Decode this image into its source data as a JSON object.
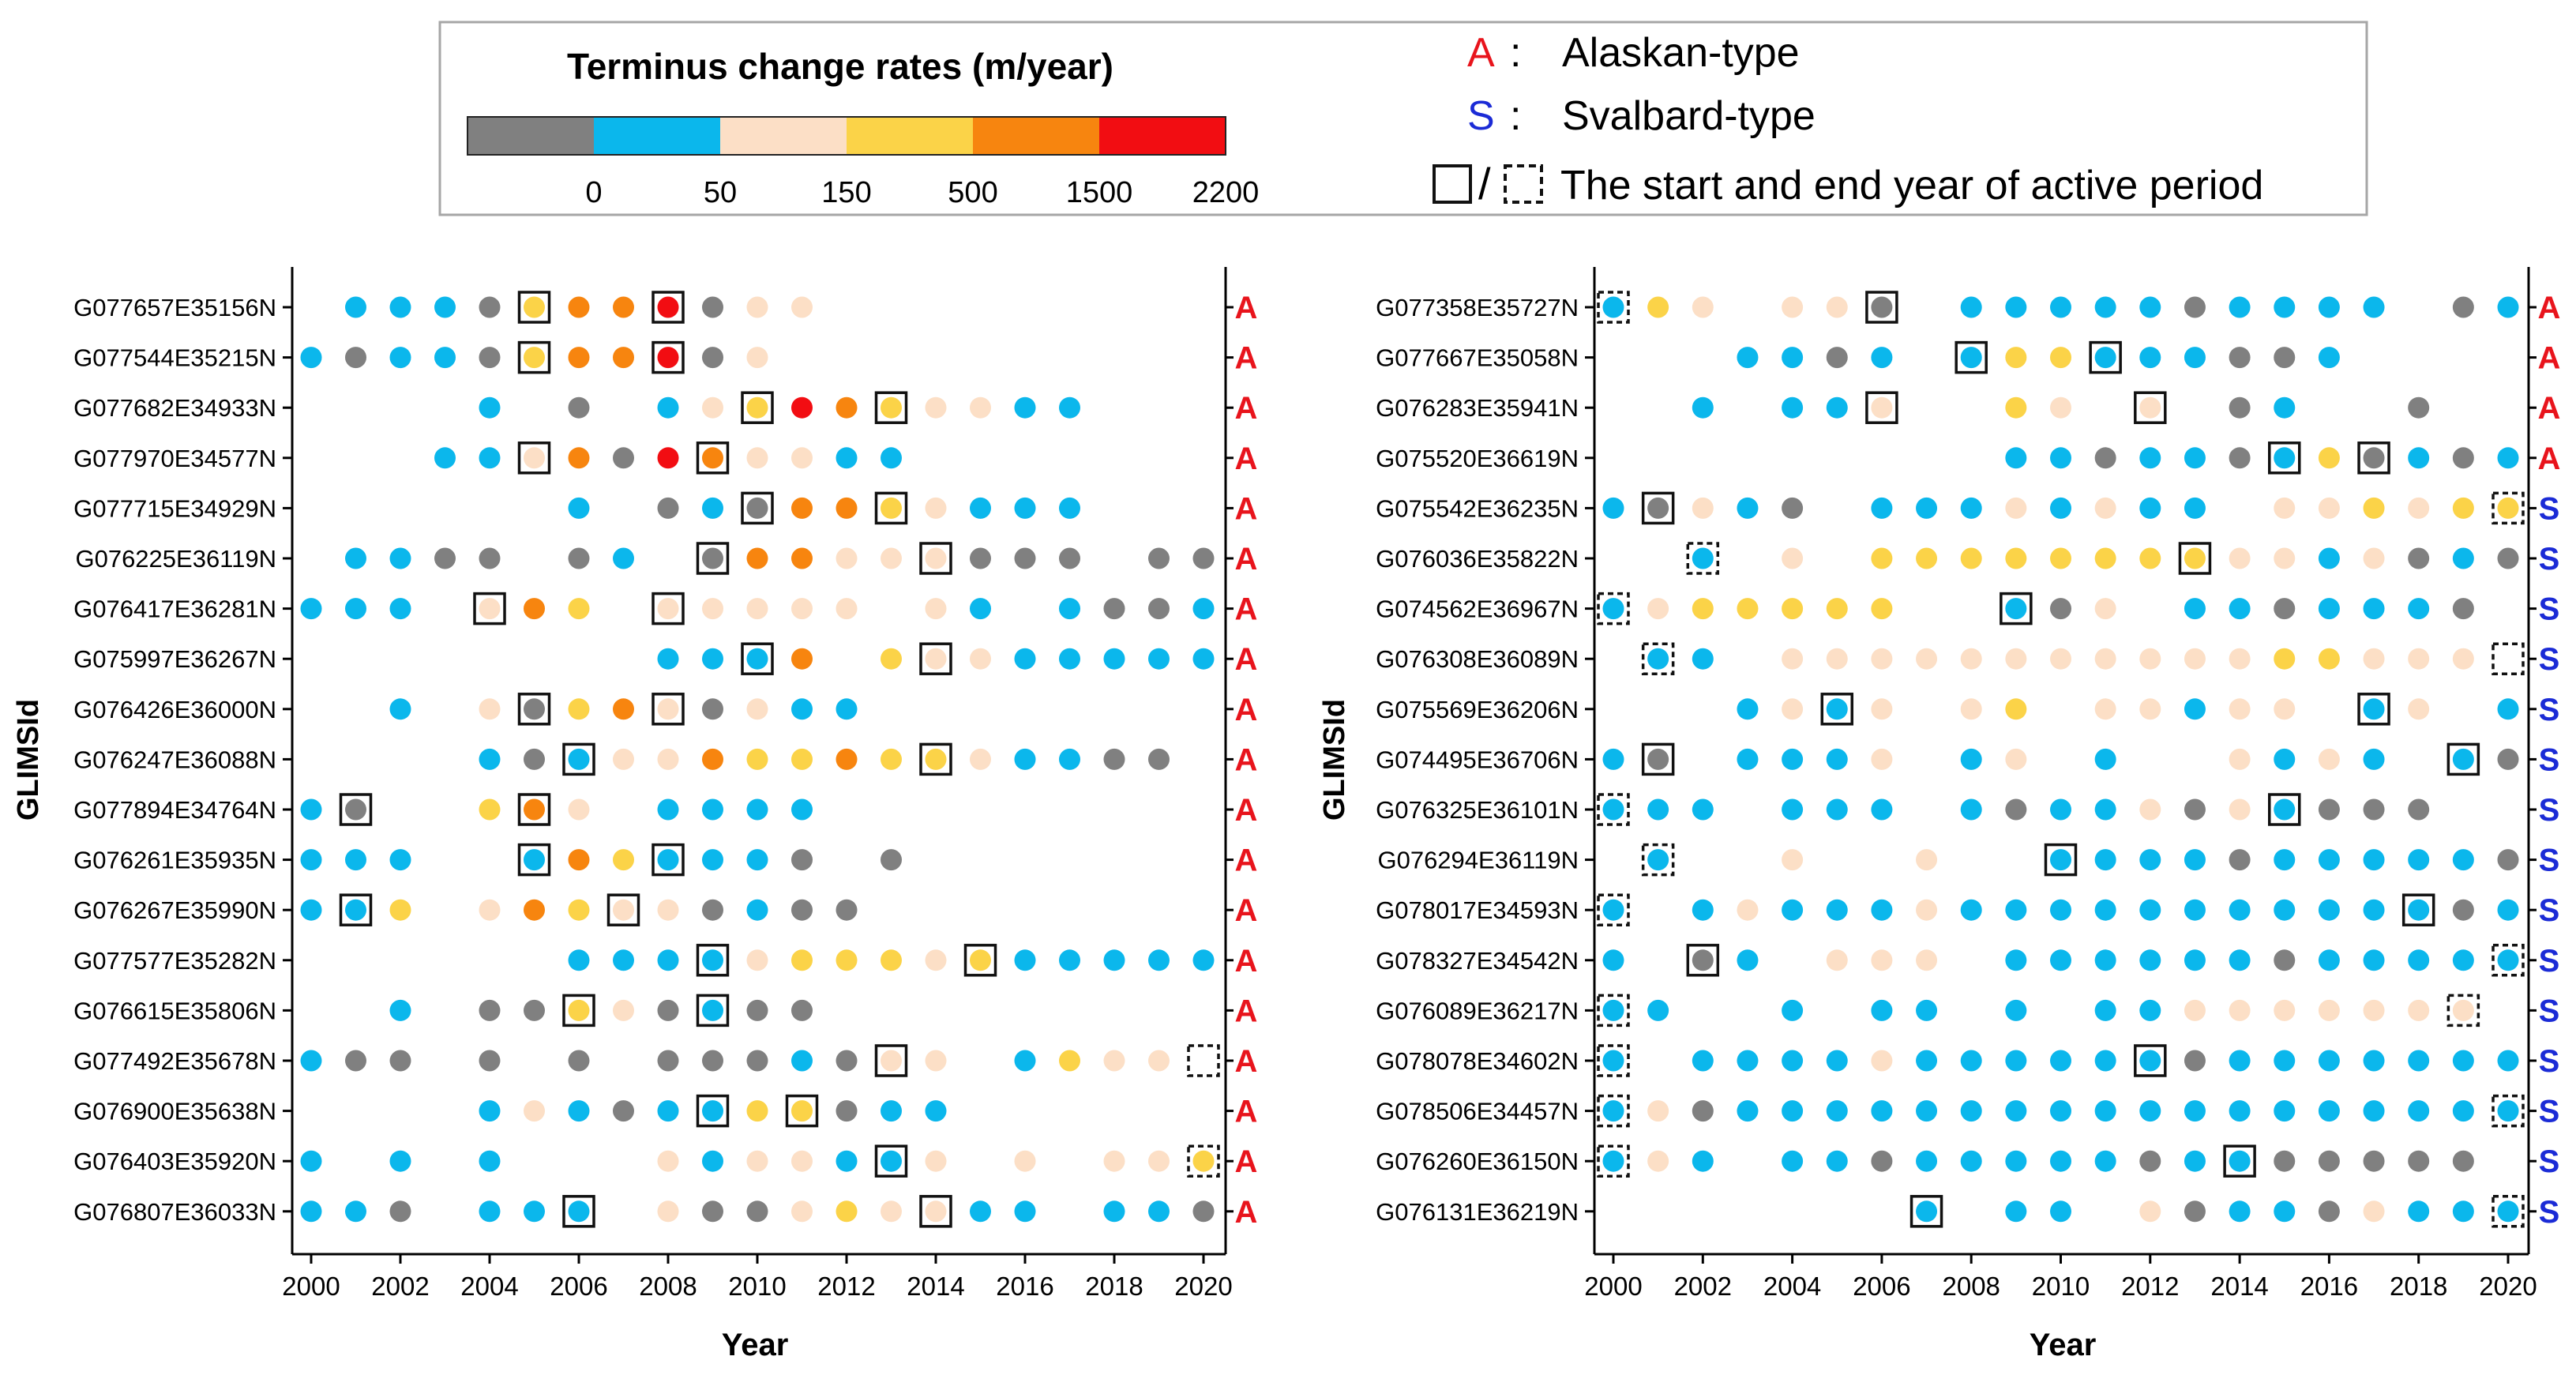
{
  "colors": {
    "gray": "#808080",
    "blue": "#0bb7ec",
    "peach": "#fcdfc6",
    "yellow": "#fbd348",
    "orange": "#f7850f",
    "red": "#f20d12",
    "type_A": "#e8141c",
    "type_S": "#1b2bd6"
  },
  "legend": {
    "colorbar_title": "Terminus change rates (m/year)",
    "colorbar_ticks": [
      "0",
      "50",
      "150",
      "500",
      "1500",
      "2200"
    ],
    "colorbar_classes": [
      "gray",
      "blue",
      "peach",
      "yellow",
      "orange",
      "red"
    ],
    "type_a_letter": "A",
    "type_a_sep": ":",
    "type_a_text": "Alaskan-type",
    "type_s_letter": "S",
    "type_s_sep": ":",
    "type_s_text": "Svalbard-type",
    "box_sep": "/",
    "box_text": "The start and end year of active period"
  },
  "chart_data": [
    {
      "type": "scatter",
      "title": "",
      "xlabel": "Year",
      "ylabel": "GLIMSId",
      "xlim": [
        2000,
        2020
      ],
      "xticks": [
        "2000",
        "2002",
        "2004",
        "2006",
        "2008",
        "2010",
        "2012",
        "2014",
        "2016",
        "2018",
        "2020"
      ],
      "color_key": "g=gray(<0), b=blue(0-50), p=peach(50-150), y=yellow(150-500), o=orange(500-1500), r=red(1500-2200), .=no data; one char per year 2000..2020",
      "rows": [
        {
          "id": "G077657E35156N",
          "type": "A",
          "codes": ".bbbgyoorgpp.........",
          "start": 2005,
          "end": 2008,
          "end_dashed": false
        },
        {
          "id": "G077544E35215N",
          "type": "A",
          "codes": "bgbbgyoorgp..........",
          "start": 2005,
          "end": 2008,
          "end_dashed": false
        },
        {
          "id": "G077682E34933N",
          "type": "A",
          "codes": "....b.g.bpyroyppbb...",
          "start": 2010,
          "end": 2013,
          "end_dashed": false
        },
        {
          "id": "G077970E34577N",
          "type": "A",
          "codes": "...bbpogroppbb.......",
          "start": 2005,
          "end": 2009,
          "end_dashed": false
        },
        {
          "id": "G077715E34929N",
          "type": "A",
          "codes": "......b.gbgooypbbb...",
          "start": 2010,
          "end": 2013,
          "end_dashed": false
        },
        {
          "id": "G076225E36119N",
          "type": "A",
          "codes": ".bbgg.gb.goopppggg.gg",
          "start": 2009,
          "end": 2014,
          "end_dashed": false
        },
        {
          "id": "G076417E36281N",
          "type": "A",
          "codes": "bbb.poy.ppppp.pb.bggb",
          "start": 2004,
          "end": 2008,
          "end_dashed": false
        },
        {
          "id": "G075997E36267N",
          "type": "A",
          "codes": "........bbbo.yppbbbbb",
          "start": 2010,
          "end": 2014,
          "end_dashed": false
        },
        {
          "id": "G076426E36000N",
          "type": "A",
          "codes": "..b.pgyopgpbb........",
          "start": 2005,
          "end": 2008,
          "end_dashed": false
        },
        {
          "id": "G076247E36088N",
          "type": "A",
          "codes": "....bgbppoyyoyypbbgg.",
          "start": 2006,
          "end": 2014,
          "end_dashed": false
        },
        {
          "id": "G077894E34764N",
          "type": "A",
          "codes": "bg..yop.bbbb.........",
          "start": 2001,
          "end": 2005,
          "end_dashed": false
        },
        {
          "id": "G076261E35935N",
          "type": "A",
          "codes": "bbb..boybbbg.g.......",
          "start": 2005,
          "end": 2008,
          "end_dashed": false
        },
        {
          "id": "G076267E35990N",
          "type": "A",
          "codes": "bby.poyppgbgg........",
          "start": 2001,
          "end": 2007,
          "end_dashed": false
        },
        {
          "id": "G077577E35282N",
          "type": "A",
          "codes": "......bbbbpyyypybbbbb",
          "start": 2009,
          "end": 2015,
          "end_dashed": false
        },
        {
          "id": "G076615E35806N",
          "type": "A",
          "codes": "..b.ggypgbgg.........",
          "start": 2006,
          "end": 2009,
          "end_dashed": false
        },
        {
          "id": "G077492E35678N",
          "type": "A",
          "codes": "bgg.g.g.gggbgpp.bypp.",
          "start": 2013,
          "end": 2020,
          "end_dashed": true
        },
        {
          "id": "G076900E35638N",
          "type": "A",
          "codes": "....bpbgbbyygbb......",
          "start": 2009,
          "end": 2011,
          "end_dashed": false
        },
        {
          "id": "G076403E35920N",
          "type": "A",
          "codes": "b.b.b...pbppbbp.p.ppy",
          "start": 2013,
          "end": 2020,
          "end_dashed": true
        },
        {
          "id": "G076807E36033N",
          "type": "A",
          "codes": "bbg.bbb.pggpyppbb.bbg",
          "start": 2006,
          "end": 2014,
          "end_dashed": false
        }
      ]
    },
    {
      "type": "scatter",
      "title": "",
      "xlabel": "Year",
      "ylabel": "GLIMSId",
      "xlim": [
        2000,
        2020
      ],
      "xticks": [
        "2000",
        "2002",
        "2004",
        "2006",
        "2008",
        "2010",
        "2012",
        "2014",
        "2016",
        "2018",
        "2020"
      ],
      "color_key": "g=gray(<0), b=blue(0-50), p=peach(50-150), y=yellow(150-500), o=orange(500-1500), r=red(1500-2200), .=no data; one char per year 2000..2020",
      "rows": [
        {
          "id": "G077358E35727N",
          "type": "A",
          "codes": "byp.ppg.bbbbbgbbbb.gb",
          "start": 2000,
          "start_dashed": true,
          "end": 2006,
          "end_dashed": false
        },
        {
          "id": "G077667E35058N",
          "type": "A",
          "codes": "...bbgb.byybbbggb....",
          "start": 2008,
          "end": 2011,
          "end_dashed": false
        },
        {
          "id": "G076283E35941N",
          "type": "A",
          "codes": "..b.bbp..yp.p.gb..g..",
          "start": 2006,
          "end": 2012,
          "end_dashed": false
        },
        {
          "id": "G075520E36619N",
          "type": "A",
          "codes": ".........bbgbbgbygbgb",
          "start": 2015,
          "end": 2017,
          "end_dashed": false
        },
        {
          "id": "G075542E36235N",
          "type": "S",
          "codes": "bgpbg.bbbpbpbb.ppypyy",
          "start": 2001,
          "end": 2020,
          "end_dashed": true
        },
        {
          "id": "G076036E35822N",
          "type": "S",
          "codes": "..b.p.yyyyyyyyppbpgbg",
          "start": 2002,
          "start_dashed": true,
          "end": 2013,
          "end_dashed": false
        },
        {
          "id": "G074562E36967N",
          "type": "S",
          "codes": "bpyyyyy..bgp.bbgbbbg.",
          "start": 2000,
          "start_dashed": true,
          "end": 2009,
          "end_dashed": false
        },
        {
          "id": "G076308E36089N",
          "type": "S",
          "codes": ".bb.pppppppppppyyppp.",
          "start": 2001,
          "start_dashed": true,
          "end": 2020,
          "end_dashed": true
        },
        {
          "id": "G075569E36206N",
          "type": "S",
          "codes": "...bpbp.py.ppbpp.bp.b",
          "start": 2005,
          "end": 2017,
          "end_dashed": false
        },
        {
          "id": "G074495E36706N",
          "type": "S",
          "codes": "bg.bbbp.bp.b..pbpb.bg",
          "start": 2001,
          "end": 2019,
          "end_dashed": false
        },
        {
          "id": "G076325E36101N",
          "type": "S",
          "codes": "bbb.bbb.bgbbpgpbggg..",
          "start": 2000,
          "start_dashed": true,
          "end": 2015,
          "end_dashed": false
        },
        {
          "id": "G076294E36119N",
          "type": "S",
          "codes": ".b..p..p..bbbbgbbbbbg",
          "start": 2001,
          "start_dashed": true,
          "end": 2010,
          "end_dashed": false
        },
        {
          "id": "G078017E34593N",
          "type": "S",
          "codes": "b.bpbbbpbbbbbbbbbbbgb",
          "start": 2000,
          "start_dashed": true,
          "end": 2018,
          "end_dashed": false
        },
        {
          "id": "G078327E34542N",
          "type": "S",
          "codes": "b.gb.ppp.bbbbbbgbbbbb",
          "start": 2002,
          "end": 2020,
          "end_dashed": true
        },
        {
          "id": "G076089E36217N",
          "type": "S",
          "codes": "bb..b.bb.b.bbppppppp.",
          "start": 2000,
          "start_dashed": true,
          "end": 2019,
          "end_dashed": true
        },
        {
          "id": "G078078E34602N",
          "type": "S",
          "codes": "b.bbbbpbbbbbbgbbbbbbb",
          "start": 2000,
          "start_dashed": true,
          "end": 2012,
          "end_dashed": false
        },
        {
          "id": "G078506E34457N",
          "type": "S",
          "codes": "bpgbbbbbbbbbbbbbbbbbb",
          "start": 2000,
          "start_dashed": true,
          "end": 2020,
          "end_dashed": true
        },
        {
          "id": "G076260E36150N",
          "type": "S",
          "codes": "bpb.bbgbbbbbgbbggggg.",
          "start": 2000,
          "start_dashed": true,
          "end": 2014,
          "end_dashed": false
        },
        {
          "id": "G076131E36219N",
          "type": "S",
          "codes": ".......b.bb.pgbbgpbbb",
          "start": 2007,
          "end": 2020,
          "end_dashed": true
        }
      ]
    }
  ]
}
